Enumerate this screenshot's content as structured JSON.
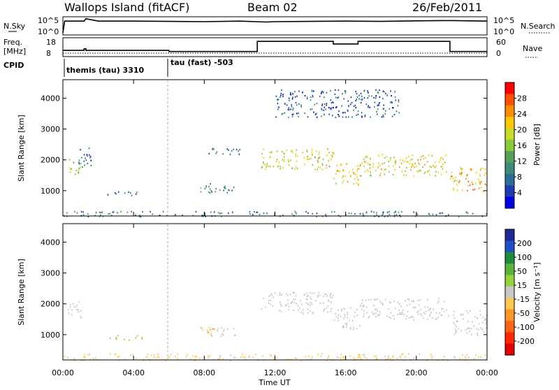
{
  "header": {
    "station": "Wallops Island (fitACF)",
    "beam": "Beam 02",
    "date": "26/Feb/2011"
  },
  "top_panels": {
    "nsky_label": "N.Sky",
    "nsky_ticks": [
      "10^5",
      "10^0"
    ],
    "nsearch_label": "N.Search",
    "freq_label_1": "Freq.",
    "freq_label_2": "[MHz]",
    "freq_ticks": [
      "18",
      "8"
    ],
    "nave_label": "Nave",
    "nave_ticks": [
      "60",
      "0"
    ],
    "cpid_label": "CPID",
    "cpid_entries": [
      {
        "name": "themis (tau) 3310",
        "start_hour": 0
      },
      {
        "name": "tau (fast) -503",
        "start_hour": 6
      }
    ]
  },
  "colorbars": {
    "power": {
      "label": "Power [dB]",
      "ticks": [
        "28",
        "24",
        "20",
        "16",
        "12",
        "8",
        "4"
      ],
      "colors": [
        "#0000e6",
        "#1e3cb4",
        "#2d6e96",
        "#3c8c78",
        "#56a05a",
        "#8cc83c",
        "#c8dc28",
        "#ffc800",
        "#ff8c00",
        "#ff5000",
        "#ff0000"
      ]
    },
    "velocity": {
      "label": "Velocity [m s⁻¹]",
      "ticks": [
        "200",
        "100",
        "50",
        "15",
        "-15",
        "-50",
        "-100",
        "-200"
      ],
      "colors": [
        "#1e2896",
        "#1e50c8",
        "#1e8c3c",
        "#5ab43c",
        "#96d23c",
        "#c8c8c8",
        "#ffc850",
        "#ff9628",
        "#ff6414",
        "#ff2800",
        "#e60000"
      ]
    }
  },
  "axes": {
    "ylabel": "Slant Range [km]",
    "yticks": [
      "4000",
      "3000",
      "2000",
      "1000"
    ],
    "xticks": [
      "00:00",
      "04:00",
      "08:00",
      "12:00",
      "16:00",
      "20:00",
      "00:00"
    ],
    "xlabel": "Time UT"
  },
  "chart_data": [
    {
      "type": "line",
      "title": "N.Sky / N.Search",
      "x_units": "hours UT",
      "ylim": [
        0,
        5
      ],
      "log_scale": true,
      "series": [
        {
          "x": [
            0,
            0.1,
            1.2,
            1.3,
            2,
            4,
            6,
            8,
            10,
            11.5,
            12,
            14,
            16,
            18,
            20,
            22,
            24
          ],
          "y": [
            0,
            4,
            4,
            4.8,
            4,
            4,
            3.9,
            3.8,
            4,
            3.7,
            3.8,
            3.9,
            4,
            3.9,
            4.1,
            4.2,
            4
          ]
        }
      ]
    },
    {
      "type": "line",
      "title": "Freq / Nave",
      "x_units": "hours UT",
      "ylim": [
        8,
        18
      ],
      "series": [
        {
          "x": [
            0,
            1.2,
            1.2,
            1.3,
            1.3,
            6,
            6,
            11,
            11,
            15.3,
            15.3,
            16.7,
            16.7,
            21.9,
            21.9,
            24
          ],
          "y": [
            11.0,
            11.0,
            12.0,
            12.0,
            11.0,
            11.0,
            10.3,
            10.3,
            16.6,
            16.6,
            15.0,
            15.0,
            16.6,
            16.6,
            10.3,
            10.3
          ]
        }
      ]
    },
    {
      "type": "heatmap",
      "title": "Power",
      "x_units": "hours UT",
      "y_units": "km",
      "xlim": [
        0,
        24
      ],
      "ylim": [
        180,
        4600
      ],
      "zlim": [
        0,
        30
      ],
      "blobs": [
        {
          "t0": 0.2,
          "t1": 1.0,
          "r0": 1500,
          "r1": 2100,
          "p": 14
        },
        {
          "t0": 0.9,
          "t1": 1.6,
          "r0": 1700,
          "r1": 2400,
          "p": 6
        },
        {
          "t0": 2.5,
          "t1": 4.5,
          "r0": 850,
          "r1": 1000,
          "p": 5
        },
        {
          "t0": 7.5,
          "t1": 9.8,
          "r0": 950,
          "r1": 1250,
          "p": 9
        },
        {
          "t0": 7.8,
          "t1": 10,
          "r0": 2200,
          "r1": 2400,
          "p": 5
        },
        {
          "t0": 11.2,
          "t1": 15.3,
          "r0": 1700,
          "r1": 2400,
          "p": 18
        },
        {
          "t0": 15.3,
          "t1": 16.8,
          "r0": 1200,
          "r1": 1900,
          "p": 20
        },
        {
          "t0": 16.8,
          "t1": 21.8,
          "r0": 1500,
          "r1": 2200,
          "p": 19
        },
        {
          "t0": 21.9,
          "t1": 24,
          "r0": 1000,
          "r1": 1800,
          "p": 22
        },
        {
          "t0": 12,
          "t1": 19,
          "r0": 3400,
          "r1": 4300,
          "p": 5
        },
        {
          "t0": 0,
          "t1": 24,
          "r0": 180,
          "r1": 350,
          "p": 7
        }
      ]
    },
    {
      "type": "heatmap",
      "title": "Velocity",
      "x_units": "hours UT",
      "y_units": "km",
      "xlim": [
        0,
        24
      ],
      "ylim": [
        180,
        4600
      ],
      "zlim": [
        -200,
        200
      ],
      "blobs": [
        {
          "t0": 0.2,
          "t1": 1.0,
          "r0": 1500,
          "r1": 2100,
          "v": 0
        },
        {
          "t0": 2.5,
          "t1": 4.5,
          "r0": 850,
          "r1": 1000,
          "v": 40
        },
        {
          "t0": 7.5,
          "t1": 8.6,
          "r0": 950,
          "r1": 1250,
          "v": -60
        },
        {
          "t0": 8.6,
          "t1": 9.8,
          "r0": 950,
          "r1": 1250,
          "v": 0
        },
        {
          "t0": 11.2,
          "t1": 15.3,
          "r0": 1700,
          "r1": 2400,
          "v": 0
        },
        {
          "t0": 15.3,
          "t1": 16.8,
          "r0": 1200,
          "r1": 1900,
          "v": 0
        },
        {
          "t0": 16.8,
          "t1": 21.8,
          "r0": 1500,
          "r1": 2200,
          "v": 0
        },
        {
          "t0": 21.9,
          "t1": 24,
          "r0": 1000,
          "r1": 1800,
          "v": 0
        },
        {
          "t0": 0,
          "t1": 24,
          "r0": 180,
          "r1": 400,
          "v": -30
        }
      ]
    }
  ]
}
